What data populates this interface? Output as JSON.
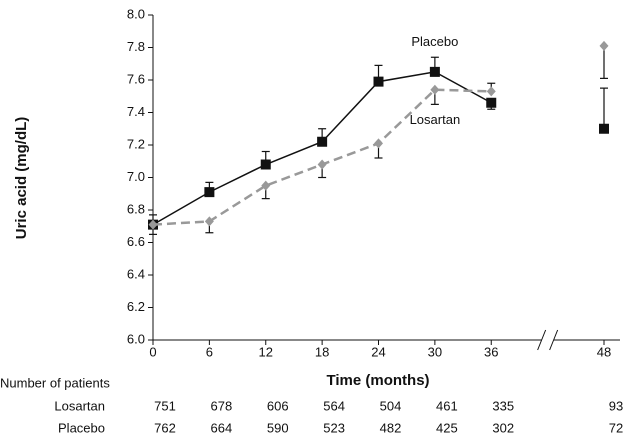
{
  "chart_data": {
    "type": "line",
    "x": [
      0,
      6,
      12,
      18,
      24,
      30,
      36,
      48
    ],
    "xlim": [
      0,
      48
    ],
    "xticks": [
      0,
      6,
      12,
      18,
      24,
      30,
      36,
      48
    ],
    "axis_break_after": 36,
    "ylim": [
      6.0,
      8.0
    ],
    "yticks": [
      {
        "value": 6.0,
        "label": "6.0"
      },
      6.2,
      6.4,
      6.6,
      6.8,
      {
        "value": 7.0,
        "label": "7.0"
      },
      7.2,
      7.4,
      7.6,
      7.8,
      {
        "value": 8.0,
        "label": "8.0"
      }
    ],
    "xlabel": "Time (months)",
    "ylabel": "Uric acid (mg/dL)",
    "series": [
      {
        "name": "Placebo",
        "color": "#111111",
        "marker": "square",
        "dash": false,
        "values": [
          6.71,
          6.91,
          7.08,
          7.22,
          7.59,
          7.65,
          7.46,
          7.3
        ],
        "errors": [
          0.06,
          0.06,
          0.08,
          0.08,
          0.1,
          0.09,
          0.04,
          0.25
        ],
        "error_direction": [
          "up",
          "up",
          "up",
          "up",
          "up",
          "up",
          "down",
          "up"
        ]
      },
      {
        "name": "Losartan",
        "color": "#999999",
        "marker": "diamond",
        "dash": true,
        "values": [
          6.71,
          6.73,
          6.95,
          7.08,
          7.21,
          7.54,
          7.53,
          7.81
        ],
        "errors": [
          0.06,
          0.07,
          0.08,
          0.08,
          0.09,
          0.09,
          0.05,
          0.2
        ],
        "error_direction": [
          "down",
          "down",
          "down",
          "down",
          "down",
          "down",
          "up",
          "down"
        ]
      }
    ],
    "annotations": [
      {
        "text": "Placebo",
        "x": 30,
        "y": 7.83
      },
      {
        "text": "Losartan",
        "x": 30,
        "y": 7.35
      }
    ],
    "patients": {
      "title": "Number of patients",
      "rows": [
        {
          "name": "Losartan",
          "values": [
            "751",
            "678",
            "606",
            "564",
            "504",
            "461",
            "335",
            "93"
          ]
        },
        {
          "name": "Placebo",
          "values": [
            "762",
            "664",
            "590",
            "523",
            "482",
            "425",
            "302",
            "72"
          ]
        }
      ]
    }
  }
}
